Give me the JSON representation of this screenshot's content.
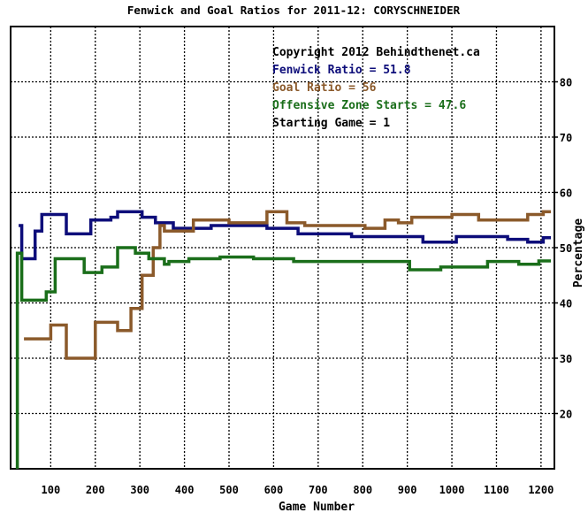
{
  "chart_data": {
    "type": "line",
    "title": "Fenwick and Goal Ratios for 2011-12: CORYSCHNEIDER",
    "xlabel": "Game Number",
    "ylabel": "Percentage",
    "xlim": [
      10,
      1230
    ],
    "ylim": [
      10,
      90
    ],
    "xticks": [
      "100",
      "200",
      "300",
      "400",
      "500",
      "600",
      "700",
      "800",
      "900",
      "1000",
      "1100",
      "1200"
    ],
    "yticks": [
      "20",
      "30",
      "40",
      "50",
      "60",
      "70",
      "80"
    ],
    "grid": true,
    "annotations": {
      "copyright": "Copyright 2012 Behindthenet.ca",
      "fenwick": "Fenwick Ratio = 51.8",
      "goal": "Goal Ratio = 56",
      "ozs": "Offensive Zone Starts = 47.6",
      "start": "Starting Game = 1"
    },
    "series": [
      {
        "key": "fenwick",
        "color": "#0d0d7a",
        "points": [
          [
            28,
            54
          ],
          [
            35,
            54
          ],
          [
            35,
            48
          ],
          [
            65,
            48
          ],
          [
            65,
            53
          ],
          [
            80,
            53
          ],
          [
            80,
            56
          ],
          [
            135,
            56
          ],
          [
            135,
            52.5
          ],
          [
            190,
            52.5
          ],
          [
            190,
            55
          ],
          [
            235,
            55
          ],
          [
            235,
            55.5
          ],
          [
            250,
            55.5
          ],
          [
            250,
            56.5
          ],
          [
            305,
            56.5
          ],
          [
            305,
            55.5
          ],
          [
            335,
            55.5
          ],
          [
            335,
            54.5
          ],
          [
            375,
            54.5
          ],
          [
            375,
            53.5
          ],
          [
            460,
            53.5
          ],
          [
            460,
            54
          ],
          [
            585,
            54
          ],
          [
            585,
            53.5
          ],
          [
            655,
            53.5
          ],
          [
            655,
            52.5
          ],
          [
            775,
            52.5
          ],
          [
            775,
            52
          ],
          [
            935,
            52
          ],
          [
            935,
            51
          ],
          [
            1010,
            51
          ],
          [
            1010,
            52
          ],
          [
            1125,
            52
          ],
          [
            1125,
            51.5
          ],
          [
            1170,
            51.5
          ],
          [
            1170,
            51
          ],
          [
            1205,
            51
          ],
          [
            1205,
            51.8
          ],
          [
            1222,
            51.8
          ]
        ]
      },
      {
        "key": "goal",
        "color": "#8b5a2b",
        "points": [
          [
            40,
            33.5
          ],
          [
            100,
            33.5
          ],
          [
            100,
            36
          ],
          [
            135,
            36
          ],
          [
            135,
            30
          ],
          [
            200,
            30
          ],
          [
            200,
            36.5
          ],
          [
            250,
            36.5
          ],
          [
            250,
            35
          ],
          [
            280,
            35
          ],
          [
            280,
            39
          ],
          [
            305,
            39
          ],
          [
            305,
            45
          ],
          [
            330,
            45
          ],
          [
            330,
            50
          ],
          [
            345,
            50
          ],
          [
            345,
            54
          ],
          [
            355,
            54
          ],
          [
            355,
            53
          ],
          [
            420,
            53
          ],
          [
            420,
            55
          ],
          [
            500,
            55
          ],
          [
            500,
            54.5
          ],
          [
            585,
            54.5
          ],
          [
            585,
            56.5
          ],
          [
            630,
            56.5
          ],
          [
            630,
            54.5
          ],
          [
            670,
            54.5
          ],
          [
            670,
            54
          ],
          [
            805,
            54
          ],
          [
            805,
            53.5
          ],
          [
            850,
            53.5
          ],
          [
            850,
            55
          ],
          [
            880,
            55
          ],
          [
            880,
            54.5
          ],
          [
            910,
            54.5
          ],
          [
            910,
            55.5
          ],
          [
            1000,
            55.5
          ],
          [
            1000,
            56
          ],
          [
            1060,
            56
          ],
          [
            1060,
            55
          ],
          [
            1170,
            55
          ],
          [
            1170,
            56
          ],
          [
            1205,
            56
          ],
          [
            1205,
            56.5
          ],
          [
            1222,
            56.5
          ]
        ]
      },
      {
        "key": "ozs",
        "color": "#1a6e1a",
        "points": [
          [
            25,
            10
          ],
          [
            25,
            49
          ],
          [
            35,
            49
          ],
          [
            35,
            40.5
          ],
          [
            90,
            40.5
          ],
          [
            90,
            42
          ],
          [
            110,
            42
          ],
          [
            110,
            48
          ],
          [
            175,
            48
          ],
          [
            175,
            45.5
          ],
          [
            215,
            45.5
          ],
          [
            215,
            46.5
          ],
          [
            250,
            46.5
          ],
          [
            250,
            50
          ],
          [
            290,
            50
          ],
          [
            290,
            49
          ],
          [
            320,
            49
          ],
          [
            320,
            48
          ],
          [
            355,
            48
          ],
          [
            355,
            47
          ],
          [
            365,
            47
          ],
          [
            365,
            47.5
          ],
          [
            410,
            47.5
          ],
          [
            410,
            48
          ],
          [
            480,
            48
          ],
          [
            480,
            48.3
          ],
          [
            555,
            48.3
          ],
          [
            555,
            48
          ],
          [
            645,
            48
          ],
          [
            645,
            47.5
          ],
          [
            805,
            47.5
          ],
          [
            805,
            47.5
          ],
          [
            905,
            47.5
          ],
          [
            905,
            46
          ],
          [
            975,
            46
          ],
          [
            975,
            46.5
          ],
          [
            1080,
            46.5
          ],
          [
            1080,
            47.5
          ],
          [
            1150,
            47.5
          ],
          [
            1150,
            47
          ],
          [
            1195,
            47
          ],
          [
            1195,
            47.6
          ],
          [
            1222,
            47.6
          ]
        ]
      }
    ]
  }
}
